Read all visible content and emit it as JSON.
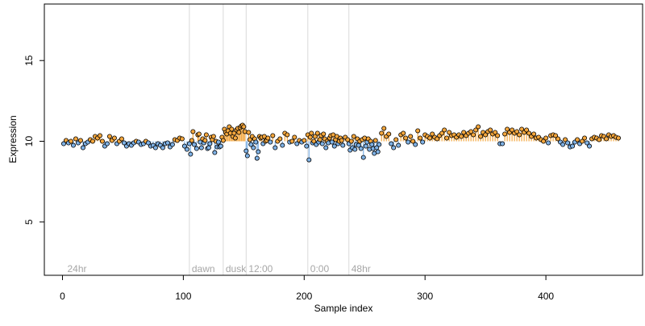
{
  "chart_data": {
    "type": "scatter",
    "title": "",
    "xlabel": "Sample index",
    "ylabel": "Expression",
    "xlim": [
      -15,
      480
    ],
    "ylim": [
      1.7,
      18.5
    ],
    "x_ticks": [
      0,
      100,
      200,
      300,
      400
    ],
    "y_ticks": [
      5,
      10,
      15
    ],
    "baseline": 10.0,
    "grid": false,
    "legend": "none",
    "colors": {
      "above_baseline": "#f4a63c",
      "below_baseline": "#7fb2e6",
      "marker_edge": "#000000",
      "separator": "#d9d9d9",
      "region_label": "#a6a6a6"
    },
    "regions": [
      {
        "label": "24hr",
        "x": 2
      },
      {
        "label": "dawn",
        "x": 105
      },
      {
        "label": "dusk",
        "x": 133
      },
      {
        "label": "12:00",
        "x": 152
      },
      {
        "label": "0:00",
        "x": 203
      },
      {
        "label": "48hr",
        "x": 237
      }
    ],
    "separators": [
      105,
      133,
      152,
      203,
      237
    ],
    "series": [
      {
        "name": "",
        "points": [
          [
            1,
            9.85
          ],
          [
            3,
            10.05
          ],
          [
            5,
            9.9
          ],
          [
            7,
            10.0
          ],
          [
            9,
            9.75
          ],
          [
            11,
            10.15
          ],
          [
            13,
            9.9
          ],
          [
            15,
            10.05
          ],
          [
            17,
            9.6
          ],
          [
            19,
            9.85
          ],
          [
            21,
            9.95
          ],
          [
            23,
            10.1
          ],
          [
            25,
            10.0
          ],
          [
            27,
            10.3
          ],
          [
            29,
            10.2
          ],
          [
            31,
            10.35
          ],
          [
            33,
            10.0
          ],
          [
            35,
            9.7
          ],
          [
            37,
            9.85
          ],
          [
            39,
            10.3
          ],
          [
            41,
            10.05
          ],
          [
            43,
            10.2
          ],
          [
            45,
            9.85
          ],
          [
            47,
            10.0
          ],
          [
            49,
            10.15
          ],
          [
            51,
            9.9
          ],
          [
            53,
            9.7
          ],
          [
            55,
            9.85
          ],
          [
            57,
            9.75
          ],
          [
            59,
            9.9
          ],
          [
            61,
            10.0
          ],
          [
            63,
            9.95
          ],
          [
            65,
            9.8
          ],
          [
            67,
            9.85
          ],
          [
            69,
            10.0
          ],
          [
            71,
            9.9
          ],
          [
            73,
            9.7
          ],
          [
            75,
            9.75
          ],
          [
            77,
            9.6
          ],
          [
            79,
            9.85
          ],
          [
            81,
            9.75
          ],
          [
            83,
            9.6
          ],
          [
            85,
            9.85
          ],
          [
            87,
            9.9
          ],
          [
            89,
            9.65
          ],
          [
            91,
            9.8
          ],
          [
            93,
            10.1
          ],
          [
            95,
            10.05
          ],
          [
            97,
            10.2
          ],
          [
            99,
            10.15
          ],
          [
            101,
            9.7
          ],
          [
            103,
            9.5
          ],
          [
            105,
            9.85
          ],
          [
            106,
            9.2
          ],
          [
            107,
            10.05
          ],
          [
            108,
            10.6
          ],
          [
            109,
            9.8
          ],
          [
            111,
            9.55
          ],
          [
            112,
            10.4
          ],
          [
            113,
            10.45
          ],
          [
            114,
            9.95
          ],
          [
            115,
            9.6
          ],
          [
            116,
            10.15
          ],
          [
            117,
            9.9
          ],
          [
            118,
            10.05
          ],
          [
            119,
            10.4
          ],
          [
            120,
            9.55
          ],
          [
            121,
            9.6
          ],
          [
            122,
            9.85
          ],
          [
            123,
            10.25
          ],
          [
            124,
            10.1
          ],
          [
            125,
            10.3
          ],
          [
            126,
            9.3
          ],
          [
            127,
            10.0
          ],
          [
            128,
            9.65
          ],
          [
            129,
            9.95
          ],
          [
            130,
            9.65
          ],
          [
            131,
            9.7
          ],
          [
            132,
            10.25
          ],
          [
            133,
            10.05
          ],
          [
            134,
            10.75
          ],
          [
            135,
            10.55
          ],
          [
            136,
            10.45
          ],
          [
            137,
            10.65
          ],
          [
            138,
            10.9
          ],
          [
            139,
            10.5
          ],
          [
            140,
            10.75
          ],
          [
            141,
            10.3
          ],
          [
            142,
            10.5
          ],
          [
            143,
            10.2
          ],
          [
            144,
            10.7
          ],
          [
            145,
            10.8
          ],
          [
            146,
            10.55
          ],
          [
            147,
            10.85
          ],
          [
            148,
            10.95
          ],
          [
            149,
            11.0
          ],
          [
            150,
            10.9
          ],
          [
            151,
            10.6
          ],
          [
            152,
            9.4
          ],
          [
            153,
            9.1
          ],
          [
            154,
            10.55
          ],
          [
            155,
            10.1
          ],
          [
            156,
            9.8
          ],
          [
            157,
            10.3
          ],
          [
            158,
            9.6
          ],
          [
            159,
            10.15
          ],
          [
            160,
            9.95
          ],
          [
            161,
            8.95
          ],
          [
            162,
            9.35
          ],
          [
            163,
            10.3
          ],
          [
            164,
            10.2
          ],
          [
            165,
            10.25
          ],
          [
            166,
            9.85
          ],
          [
            167,
            10.3
          ],
          [
            168,
            10.0
          ],
          [
            169,
            10.05
          ],
          [
            170,
            10.2
          ],
          [
            172,
            9.95
          ],
          [
            174,
            10.35
          ],
          [
            176,
            9.6
          ],
          [
            178,
            10.0
          ],
          [
            180,
            10.15
          ],
          [
            182,
            9.75
          ],
          [
            184,
            10.5
          ],
          [
            186,
            10.4
          ],
          [
            188,
            9.95
          ],
          [
            190,
            10.0
          ],
          [
            192,
            10.25
          ],
          [
            194,
            9.85
          ],
          [
            196,
            10.05
          ],
          [
            198,
            9.95
          ],
          [
            200,
            10.05
          ],
          [
            202,
            9.7
          ],
          [
            203,
            10.4
          ],
          [
            204,
            8.85
          ],
          [
            205,
            10.25
          ],
          [
            206,
            10.5
          ],
          [
            207,
            9.9
          ],
          [
            208,
            10.0
          ],
          [
            209,
            10.3
          ],
          [
            210,
            9.8
          ],
          [
            211,
            10.5
          ],
          [
            212,
            9.95
          ],
          [
            213,
            10.1
          ],
          [
            214,
            10.35
          ],
          [
            215,
            9.85
          ],
          [
            216,
            10.45
          ],
          [
            217,
            10.15
          ],
          [
            218,
            9.6
          ],
          [
            219,
            10.0
          ],
          [
            220,
            9.9
          ],
          [
            221,
            10.2
          ],
          [
            222,
            10.35
          ],
          [
            223,
            9.95
          ],
          [
            224,
            10.4
          ],
          [
            225,
            9.7
          ],
          [
            226,
            10.1
          ],
          [
            227,
            10.3
          ],
          [
            228,
            9.85
          ],
          [
            229,
            10.0
          ],
          [
            230,
            10.2
          ],
          [
            231,
            10.05
          ],
          [
            232,
            9.75
          ],
          [
            234,
            10.25
          ],
          [
            236,
            10.1
          ],
          [
            237,
            9.85
          ],
          [
            238,
            9.45
          ],
          [
            239,
            10.0
          ],
          [
            240,
            9.6
          ],
          [
            241,
            10.3
          ],
          [
            242,
            9.5
          ],
          [
            243,
            9.8
          ],
          [
            244,
            10.15
          ],
          [
            245,
            9.75
          ],
          [
            246,
            10.0
          ],
          [
            247,
            9.55
          ],
          [
            248,
            10.1
          ],
          [
            249,
            9.0
          ],
          [
            250,
            10.2
          ],
          [
            251,
            9.7
          ],
          [
            252,
            9.95
          ],
          [
            253,
            10.15
          ],
          [
            254,
            9.5
          ],
          [
            255,
            10.0
          ],
          [
            256,
            9.8
          ],
          [
            257,
            9.55
          ],
          [
            258,
            9.25
          ],
          [
            259,
            10.05
          ],
          [
            260,
            9.6
          ],
          [
            261,
            9.35
          ],
          [
            262,
            9.8
          ],
          [
            264,
            10.5
          ],
          [
            266,
            10.8
          ],
          [
            268,
            10.3
          ],
          [
            270,
            10.45
          ],
          [
            272,
            9.85
          ],
          [
            274,
            9.6
          ],
          [
            276,
            10.1
          ],
          [
            278,
            9.75
          ],
          [
            280,
            10.4
          ],
          [
            282,
            10.5
          ],
          [
            284,
            10.2
          ],
          [
            286,
            9.95
          ],
          [
            288,
            10.3
          ],
          [
            290,
            10.0
          ],
          [
            292,
            9.8
          ],
          [
            294,
            10.65
          ],
          [
            296,
            10.2
          ],
          [
            298,
            9.95
          ],
          [
            300,
            10.4
          ],
          [
            302,
            10.3
          ],
          [
            304,
            10.2
          ],
          [
            306,
            10.45
          ],
          [
            308,
            10.25
          ],
          [
            310,
            10.15
          ],
          [
            312,
            10.35
          ],
          [
            314,
            10.5
          ],
          [
            316,
            10.7
          ],
          [
            318,
            10.2
          ],
          [
            320,
            10.55
          ],
          [
            322,
            10.35
          ],
          [
            324,
            10.4
          ],
          [
            326,
            10.25
          ],
          [
            328,
            10.4
          ],
          [
            330,
            10.3
          ],
          [
            332,
            10.55
          ],
          [
            334,
            10.35
          ],
          [
            336,
            10.5
          ],
          [
            338,
            10.6
          ],
          [
            340,
            10.4
          ],
          [
            342,
            10.7
          ],
          [
            344,
            10.9
          ],
          [
            346,
            10.3
          ],
          [
            348,
            10.55
          ],
          [
            350,
            10.4
          ],
          [
            352,
            10.6
          ],
          [
            354,
            10.7
          ],
          [
            356,
            10.45
          ],
          [
            358,
            10.55
          ],
          [
            360,
            10.35
          ],
          [
            362,
            9.85
          ],
          [
            364,
            9.85
          ],
          [
            366,
            10.45
          ],
          [
            368,
            10.75
          ],
          [
            370,
            10.55
          ],
          [
            372,
            10.7
          ],
          [
            374,
            10.5
          ],
          [
            376,
            10.6
          ],
          [
            378,
            10.4
          ],
          [
            380,
            10.75
          ],
          [
            382,
            10.55
          ],
          [
            384,
            10.7
          ],
          [
            386,
            10.5
          ],
          [
            388,
            10.3
          ],
          [
            390,
            10.45
          ],
          [
            392,
            10.2
          ],
          [
            394,
            10.25
          ],
          [
            396,
            10.1
          ],
          [
            398,
            10.0
          ],
          [
            400,
            10.2
          ],
          [
            402,
            9.9
          ],
          [
            404,
            10.35
          ],
          [
            406,
            10.4
          ],
          [
            408,
            10.35
          ],
          [
            410,
            10.15
          ],
          [
            412,
            9.95
          ],
          [
            414,
            9.8
          ],
          [
            416,
            10.1
          ],
          [
            418,
            9.9
          ],
          [
            420,
            9.65
          ],
          [
            422,
            9.7
          ],
          [
            424,
            9.95
          ],
          [
            426,
            10.1
          ],
          [
            428,
            9.85
          ],
          [
            430,
            10.0
          ],
          [
            432,
            10.2
          ],
          [
            434,
            9.9
          ],
          [
            436,
            9.7
          ],
          [
            438,
            10.15
          ],
          [
            440,
            10.25
          ],
          [
            442,
            10.2
          ],
          [
            444,
            10.1
          ],
          [
            446,
            10.35
          ],
          [
            448,
            10.3
          ],
          [
            450,
            10.15
          ],
          [
            452,
            10.4
          ],
          [
            454,
            10.3
          ],
          [
            456,
            10.35
          ],
          [
            458,
            10.25
          ],
          [
            460,
            10.2
          ]
        ]
      }
    ]
  }
}
